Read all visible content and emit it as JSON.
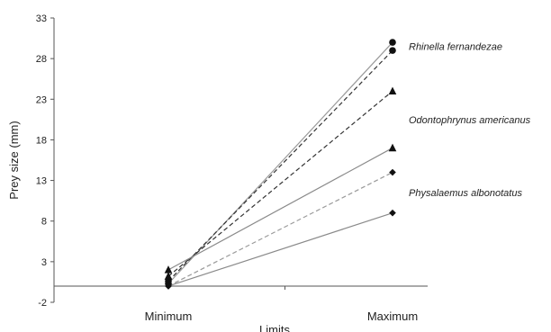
{
  "chart_data": {
    "type": "line",
    "title": "",
    "xlabel": "Limits",
    "ylabel": "Prey size (mm)",
    "categories": [
      "Minimum",
      "Maximum"
    ],
    "ylim": [
      -2,
      33
    ],
    "yticks": [
      -2,
      3,
      8,
      13,
      18,
      23,
      28,
      33
    ],
    "grid": false,
    "legend": "none",
    "series": [
      {
        "values": [
          0.3,
          30.0
        ],
        "marker": "circle",
        "line": "solid",
        "color": "#9a9a9a"
      },
      {
        "values": [
          0.6,
          29.0
        ],
        "marker": "circle",
        "line": "dashed",
        "color": "#333333"
      },
      {
        "values": [
          1.2,
          24.0
        ],
        "marker": "triangle",
        "line": "dashed",
        "color": "#333333"
      },
      {
        "values": [
          2.0,
          17.0
        ],
        "marker": "triangle",
        "line": "solid",
        "color": "#8a8a8a"
      },
      {
        "values": [
          0.0,
          14.0
        ],
        "marker": "diamond",
        "line": "dashed",
        "color": "#9a9a9a"
      },
      {
        "values": [
          0.0,
          9.0
        ],
        "marker": "diamond",
        "line": "solid",
        "color": "#8a8a8a"
      }
    ],
    "annotations": [
      {
        "text": "Rhinella fernandezae",
        "near_value": 29.5
      },
      {
        "text": "Odontophrynus americanus",
        "near_value": 20.5
      },
      {
        "text": "Physalaemus albonotatus",
        "near_value": 11.5
      }
    ]
  }
}
